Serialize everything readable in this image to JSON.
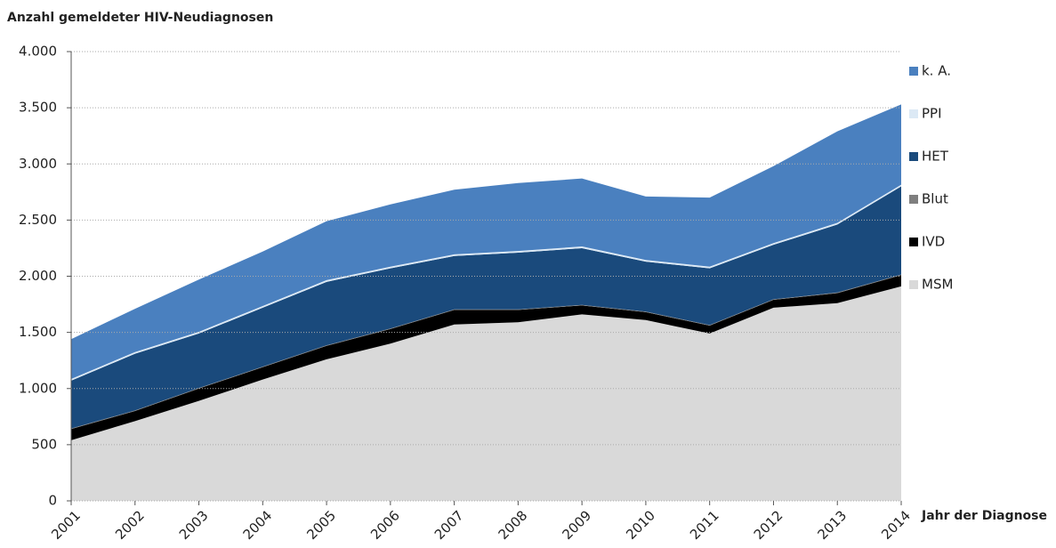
{
  "chart_data": {
    "type": "stacked-area",
    "title": "Anzahl gemeldeter HIV-Neudiagnosen",
    "x_label": "Jahr der Diagnose",
    "categories": [
      "2001",
      "2002",
      "2003",
      "2004",
      "2005",
      "2006",
      "2007",
      "2008",
      "2009",
      "2010",
      "2011",
      "2012",
      "2013",
      "2014"
    ],
    "series": [
      {
        "name": "MSM",
        "color": "#d9d9d9",
        "values": [
          540,
          710,
          890,
          1080,
          1260,
          1400,
          1570,
          1590,
          1660,
          1610,
          1490,
          1720,
          1760,
          1910
        ]
      },
      {
        "name": "IVD",
        "color": "#000000",
        "values": [
          100,
          90,
          110,
          110,
          120,
          130,
          130,
          110,
          80,
          70,
          70,
          70,
          90,
          100
        ]
      },
      {
        "name": "Blut",
        "color": "#7f7f7f",
        "values": [
          5,
          5,
          5,
          5,
          5,
          5,
          5,
          5,
          5,
          5,
          5,
          5,
          5,
          5
        ]
      },
      {
        "name": "HET",
        "color": "#1a4a7c",
        "values": [
          425,
          505,
          485,
          525,
          565,
          535,
          475,
          505,
          505,
          445,
          505,
          485,
          605,
          785
        ]
      },
      {
        "name": "PPI",
        "color": "#dce9f5",
        "values": [
          15,
          15,
          15,
          15,
          15,
          15,
          15,
          15,
          15,
          15,
          15,
          15,
          15,
          15
        ]
      },
      {
        "name": "k. A.",
        "color": "#4a80bf",
        "values": [
          355,
          385,
          465,
          485,
          525,
          555,
          575,
          605,
          605,
          565,
          615,
          685,
          815,
          715
        ]
      }
    ],
    "ylim": [
      0,
      4000
    ],
    "yticks": [
      0,
      500,
      {
        "value": 1000,
        "label": "1.000"
      },
      {
        "value": 1500,
        "label": "1.500"
      },
      {
        "value": 2000,
        "label": "2.000"
      },
      {
        "value": 2500,
        "label": "2.500"
      },
      {
        "value": 3000,
        "label": "3.000"
      },
      {
        "value": 3500,
        "label": "3.500"
      },
      {
        "value": 4000,
        "label": "4.000"
      }
    ],
    "grid": true,
    "legend": "right"
  }
}
